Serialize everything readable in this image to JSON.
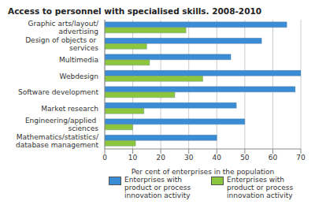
{
  "chart_data": {
    "type": "bar",
    "title": "Access to personnel with specialised skills. 2008-2010",
    "orientation": "horizontal",
    "categories": [
      "Graphic arts/layout/advertising",
      "Design of objects or services",
      "Multimedia",
      "Webdesign",
      "Software development",
      "Market research",
      "Engineering/applied sciences",
      "Mathematics/statistics/database management"
    ],
    "series": [
      {
        "name": "Enterprises with product or process innovation activity",
        "color": "#3a8dd4",
        "values": [
          65,
          56,
          45,
          70,
          68,
          47,
          50,
          40
        ]
      },
      {
        "name": "Enterprises with product or process innovation activity",
        "color": "#8cc63f",
        "values": [
          29,
          15,
          16,
          35,
          25,
          14,
          10,
          11
        ]
      }
    ],
    "x_label": "Per cent of enterprises in the population",
    "xlim": [
      0,
      70
    ],
    "xticks": [
      0,
      10,
      20,
      30,
      40,
      50,
      60,
      70
    ],
    "grid": true,
    "legend": "bottom"
  }
}
